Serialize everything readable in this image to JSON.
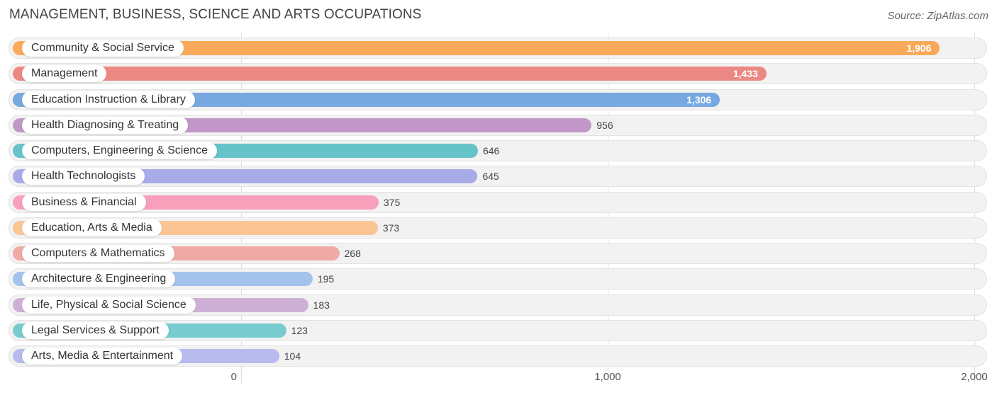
{
  "header": {
    "title": "MANAGEMENT, BUSINESS, SCIENCE AND ARTS OCCUPATIONS",
    "source": "Source: ZipAtlas.com"
  },
  "chart_data": {
    "type": "bar",
    "orientation": "horizontal",
    "title": "MANAGEMENT, BUSINESS, SCIENCE AND ARTS OCCUPATIONS",
    "categories": [
      "Community & Social Service",
      "Management",
      "Education Instruction & Library",
      "Health Diagnosing & Treating",
      "Computers, Engineering & Science",
      "Health Technologists",
      "Business & Financial",
      "Education, Arts & Media",
      "Computers & Mathematics",
      "Architecture & Engineering",
      "Life, Physical & Social Science",
      "Legal Services & Support",
      "Arts, Media & Entertainment"
    ],
    "values": [
      1906,
      1433,
      1306,
      956,
      646,
      645,
      375,
      373,
      268,
      195,
      183,
      123,
      104
    ],
    "value_labels": [
      "1,906",
      "1,433",
      "1,306",
      "956",
      "646",
      "645",
      "375",
      "373",
      "268",
      "195",
      "183",
      "123",
      "104"
    ],
    "colors": [
      "#f9a95a",
      "#ec8883",
      "#77a8e0",
      "#c198c8",
      "#66c3c8",
      "#a7ace8",
      "#f89fbb",
      "#fbc495",
      "#f0aaa5",
      "#a3c3ec",
      "#ceb0d6",
      "#78ccd0",
      "#b7bbee"
    ],
    "xlim": [
      0,
      2000
    ],
    "x_ticks": [
      0,
      1000,
      2000
    ],
    "x_tick_labels": [
      "0",
      "1,000",
      "2,000"
    ],
    "grid": true,
    "legend": "none"
  }
}
